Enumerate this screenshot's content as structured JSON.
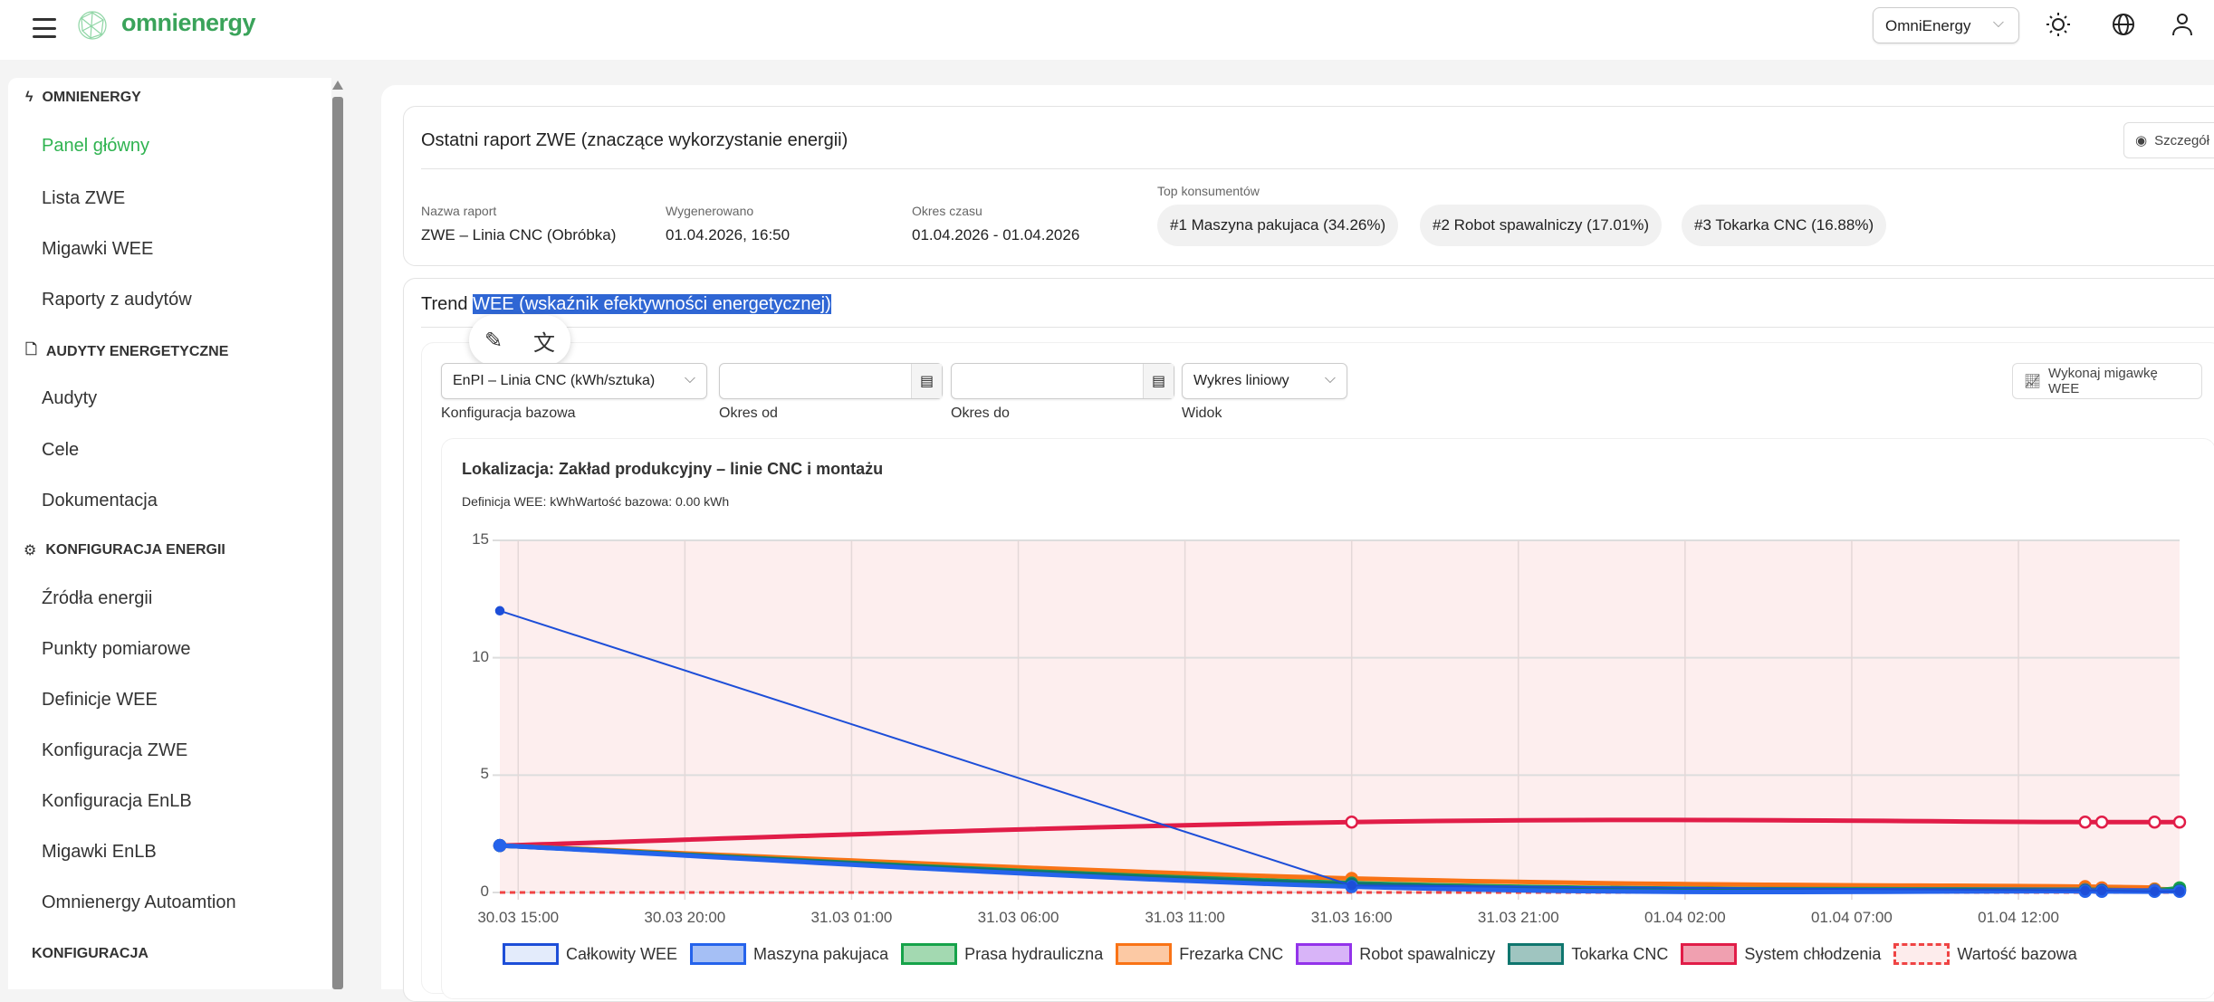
{
  "header": {
    "brand": "omnienergy",
    "tenant": "OmniEnergy",
    "icons": [
      "menu-icon",
      "sun-icon",
      "globe-icon",
      "user-icon"
    ]
  },
  "sidebar": {
    "sections": [
      {
        "title": "OMNIENERGY",
        "icon": "lightning-icon",
        "items": [
          "Panel główny",
          "Lista ZWE",
          "Migawki WEE",
          "Raporty z audytów"
        ]
      },
      {
        "title": "AUDYTY ENERGETYCZNE",
        "icon": "document-icon",
        "items": [
          "Audyty",
          "Cele",
          "Dokumentacja"
        ]
      },
      {
        "title": "KONFIGURACJA ENERGII",
        "icon": "gear-icon",
        "items": [
          "Źródła energii",
          "Punkty pomiarowe",
          "Definicje WEE",
          "Konfiguracja ZWE",
          "Konfiguracja EnLB",
          "Migawki EnLB",
          "Omnienergy Autoamtion"
        ]
      },
      {
        "title": "KONFIGURACJA",
        "items": []
      }
    ],
    "active": "Panel główny"
  },
  "report": {
    "title": "Ostatni raport ZWE (znaczące wykorzystanie energii)",
    "details_button": "Szczegół",
    "name_label": "Nazwa raport",
    "name": "ZWE – Linia CNC (Obróbka)",
    "generated_label": "Wygenerowano",
    "generated": "01.04.2026, 16:50",
    "period_label": "Okres czasu",
    "period": "01.04.2026 - 01.04.2026",
    "top_label": "Top konsumentów",
    "top": [
      "#1 Maszyna pakujaca (34.26%)",
      "#2 Robot spawalniczy (17.01%)",
      "#3 Tokarka CNC (16.88%)"
    ]
  },
  "trend": {
    "title_prefix": "Trend ",
    "title_selected": "WEE (wskaźnik efektywności energetycznej)",
    "config_value": "EnPI – Linia CNC (kWh/sztuka)",
    "config_label": "Konfiguracja bazowa",
    "from_value": "",
    "from_label": "Okres od",
    "to_value": "",
    "to_label": "Okres do",
    "view_value": "Wykres liniowy",
    "view_label": "Widok",
    "snapshot_button": "Wykonaj migawkę WEE",
    "location": "Lokalizacja: Zakład produkcyjny – linie CNC i montażu",
    "definition": "Definicja WEE: kWhWartość bazowa: 0.00 kWh"
  },
  "chart_data": {
    "type": "line",
    "x": [
      "2026-03-30 14:27",
      "2026-03-31 16:00",
      "2026-04-01 14:00",
      "2026-04-01 14:30",
      "2026-04-01 16:05",
      "2026-04-01 16:50"
    ],
    "xlim": [
      "2026-03-30 14:27",
      "2026-04-01 16:50"
    ],
    "x_ticks": [
      "30.03 15:00",
      "30.03 20:00",
      "31.03 01:00",
      "31.03 06:00",
      "31.03 11:00",
      "31.03 16:00",
      "31.03 21:00",
      "01.04 02:00",
      "01.04 07:00",
      "01.04 12:00"
    ],
    "ylim": [
      0,
      15
    ],
    "y_ticks": [
      0,
      5,
      10,
      15
    ],
    "grid": true,
    "legend": "bottom",
    "background": "#fdeeee",
    "series": [
      {
        "name": "Całkowity WEE",
        "color": "#1d4ed8",
        "fill": "#e3ebfb",
        "values": [
          12,
          0.3,
          0.08,
          0.08,
          0.05,
          0.05
        ]
      },
      {
        "name": "Maszyna pakujaca",
        "color": "#2563eb",
        "fill": "#a5bff5",
        "values": [
          2,
          0.25,
          0.05,
          0.05,
          0.05,
          0.05
        ]
      },
      {
        "name": "Prasa hydrauliczna",
        "color": "#16a34a",
        "fill": "#a3d9b1",
        "values": [
          2,
          0.4,
          0.12,
          0.1,
          0.1,
          0.2
        ]
      },
      {
        "name": "Frezarka CNC",
        "color": "#f97316",
        "fill": "#fcc9a4",
        "values": [
          2,
          0.6,
          0.25,
          0.2,
          0.15,
          0.12
        ]
      },
      {
        "name": "Robot spawalniczy",
        "color": "#9333ea",
        "fill": "#d8b4f8",
        "values": [
          2,
          0.35,
          0.1,
          0.1,
          0.08,
          0.08
        ]
      },
      {
        "name": "Tokarka CNC",
        "color": "#0f766e",
        "fill": "#9fc5c0",
        "values": [
          2,
          0.35,
          0.08,
          0.08,
          0.06,
          0.1
        ]
      },
      {
        "name": "System chłodzenia",
        "color": "#e11d48",
        "fill": "#f0a0b0",
        "values": [
          2,
          3,
          3,
          3,
          3,
          3
        ]
      },
      {
        "name": "Wartość bazowa",
        "color": "#ef4444",
        "fill": "#fdecec",
        "dashed": true,
        "values": [
          0,
          0,
          0,
          0,
          0,
          0
        ]
      }
    ]
  }
}
